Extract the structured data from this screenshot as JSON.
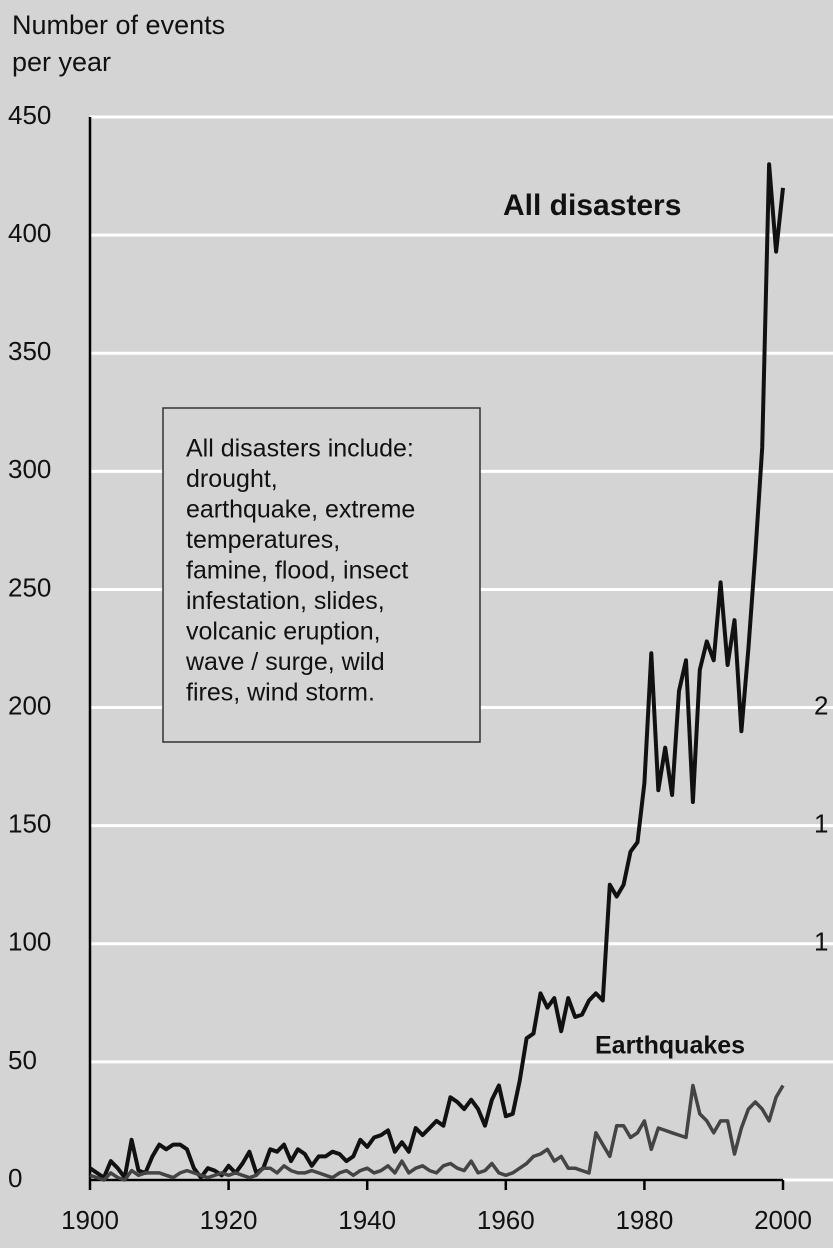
{
  "chart_data": {
    "type": "line",
    "y_label_lines": [
      "Number of events",
      "per year"
    ],
    "x": [
      1900,
      1901,
      1902,
      1903,
      1904,
      1905,
      1906,
      1907,
      1908,
      1909,
      1910,
      1911,
      1912,
      1913,
      1914,
      1915,
      1916,
      1917,
      1918,
      1919,
      1920,
      1921,
      1922,
      1923,
      1924,
      1925,
      1926,
      1927,
      1928,
      1929,
      1930,
      1931,
      1932,
      1933,
      1934,
      1935,
      1936,
      1937,
      1938,
      1939,
      1940,
      1941,
      1942,
      1943,
      1944,
      1945,
      1946,
      1947,
      1948,
      1949,
      1950,
      1951,
      1952,
      1953,
      1954,
      1955,
      1956,
      1957,
      1958,
      1959,
      1960,
      1961,
      1962,
      1963,
      1964,
      1965,
      1966,
      1967,
      1968,
      1969,
      1970,
      1971,
      1972,
      1973,
      1974,
      1975,
      1976,
      1977,
      1978,
      1979,
      1980,
      1981,
      1982,
      1983,
      1984,
      1985,
      1986,
      1987,
      1988,
      1989,
      1990,
      1991,
      1992,
      1993,
      1994,
      1995,
      1996,
      1997,
      1998,
      1999,
      2000
    ],
    "series": [
      {
        "name": "All disasters",
        "color": "#111111",
        "values": [
          5,
          3,
          1,
          8,
          5,
          1,
          17,
          4,
          3,
          10,
          15,
          13,
          15,
          15,
          13,
          5,
          1,
          5,
          4,
          2,
          6,
          3,
          7,
          12,
          3,
          5,
          13,
          12,
          15,
          8,
          13,
          11,
          6,
          10,
          10,
          12,
          11,
          8,
          10,
          17,
          14,
          18,
          19,
          21,
          12,
          16,
          12,
          22,
          19,
          22,
          25,
          23,
          35,
          33,
          30,
          34,
          30,
          23,
          34,
          40,
          27,
          28,
          42,
          60,
          62,
          79,
          73,
          77,
          63,
          77,
          69,
          70,
          76,
          79,
          76,
          125,
          120,
          125,
          139,
          143,
          168,
          223,
          165,
          183,
          163,
          207,
          220,
          160,
          216,
          228,
          220,
          253,
          218,
          237,
          190,
          225,
          265,
          310,
          430,
          393,
          420
        ]
      },
      {
        "name": "Earthquakes",
        "color": "#444444",
        "values": [
          2,
          1,
          0,
          3,
          1,
          0,
          4,
          2,
          3,
          3,
          3,
          2,
          1,
          3,
          4,
          3,
          2,
          1,
          2,
          3,
          2,
          3,
          2,
          1,
          2,
          5,
          5,
          3,
          6,
          4,
          3,
          3,
          4,
          3,
          2,
          1,
          3,
          4,
          2,
          4,
          5,
          3,
          4,
          6,
          3,
          8,
          3,
          5,
          6,
          4,
          3,
          6,
          7,
          5,
          4,
          8,
          3,
          4,
          7,
          3,
          2,
          3,
          5,
          7,
          10,
          11,
          13,
          8,
          10,
          5,
          5,
          4,
          3,
          20,
          15,
          10,
          23,
          23,
          18,
          20,
          25,
          13,
          22,
          21,
          20,
          19,
          18,
          40,
          28,
          25,
          20,
          25,
          25,
          11,
          22,
          30,
          33,
          30,
          25,
          35,
          40
        ]
      }
    ],
    "annotation_lines": [
      "All disasters include:",
      "drought,",
      "earthquake, extreme",
      "temperatures,",
      "famine, flood, insect",
      "infestation, slides,",
      "volcanic eruption,",
      "wave / surge, wild",
      "fires, wind storm."
    ],
    "edge_labels": [
      "2",
      "1",
      "1"
    ],
    "xlim": [
      1900,
      2000
    ],
    "xticks": [
      1900,
      1920,
      1940,
      1960,
      1980,
      2000
    ],
    "ylim": [
      0,
      450
    ],
    "yticks": [
      0,
      50,
      100,
      150,
      200,
      250,
      300,
      350,
      400,
      450
    ],
    "grid": true
  }
}
